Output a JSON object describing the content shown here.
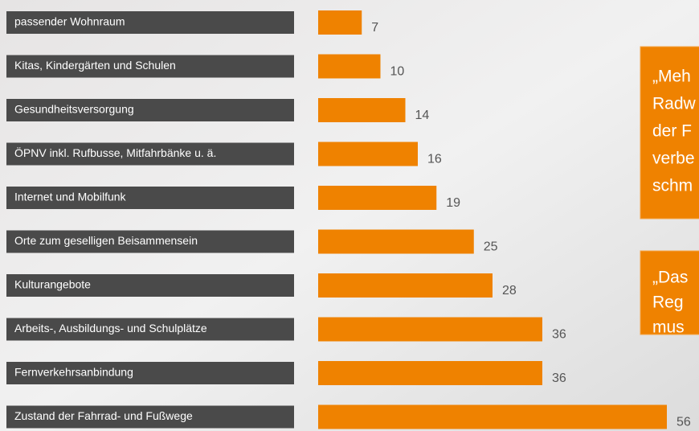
{
  "chart_data": {
    "type": "bar",
    "orientation": "horizontal",
    "categories": [
      "passender Wohnraum",
      "Kitas, Kindergärten und Schulen",
      "Gesundheitsversorgung",
      "ÖPNV inkl. Rufbusse, Mitfahrbänke u. ä.",
      "Internet und Mobilfunk",
      "Orte zum geselligen Beisammensein",
      "Kulturangebote",
      "Arbeits-, Ausbildungs- und Schulplätze",
      "Fernverkehrsanbindung",
      "Zustand der Fahrrad- und Fußwege"
    ],
    "values": [
      7,
      10,
      14,
      16,
      19,
      25,
      28,
      36,
      36,
      56
    ],
    "color": "#ef8200",
    "annotations": [
      [
        "„Meh",
        "Radw",
        "der F",
        "verbe",
        "schm"
      ],
      [
        "„Das",
        "Reg",
        "mus"
      ]
    ]
  }
}
